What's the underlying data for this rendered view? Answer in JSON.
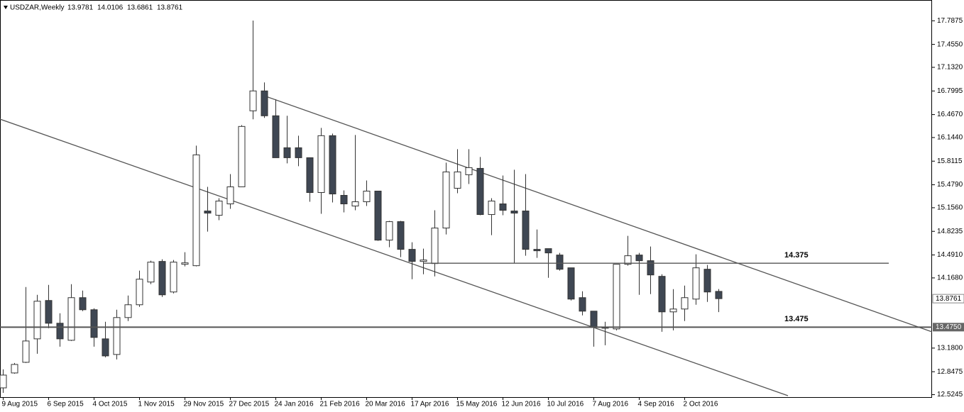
{
  "chart_data": {
    "type": "candlestick",
    "title": "USDZAR,Weekly",
    "categories": [
      "9 Aug 2015",
      null,
      null,
      null,
      "6 Sep 2015",
      null,
      null,
      null,
      "4 Oct 2015",
      null,
      null,
      null,
      "1 Nov 2015",
      null,
      null,
      null,
      "29 Nov 2015",
      null,
      null,
      null,
      "27 Dec 2015",
      null,
      null,
      null,
      "24 Jan 2016",
      null,
      null,
      null,
      "21 Feb 2016",
      null,
      null,
      null,
      "20 Mar 2016",
      null,
      null,
      null,
      "17 Apr 2016",
      null,
      null,
      null,
      "15 May 2016",
      null,
      null,
      null,
      "12 Jun 2016",
      null,
      null,
      null,
      "10 Jul 2016",
      null,
      null,
      null,
      "7 Aug 2016",
      null,
      null,
      null,
      "4 Sep 2016",
      null,
      null,
      null,
      "2 Oct 2016",
      null,
      null,
      null
    ],
    "open": [
      12.62,
      12.83,
      12.98,
      13.31,
      13.85,
      13.53,
      13.29,
      13.89,
      13.72,
      13.31,
      13.09,
      13.61,
      13.79,
      14.11,
      14.4,
      13.97,
      14.36,
      14.34,
      15.11,
      15.05,
      15.21,
      15.45,
      16.52,
      16.8,
      16.45,
      16.0,
      16.0,
      15.86,
      15.37,
      16.17,
      15.33,
      15.18,
      15.24,
      15.39,
      14.7,
      14.96,
      14.57,
      14.4,
      14.37,
      14.87,
      15.43,
      15.62,
      15.71,
      15.06,
      15.21,
      15.11,
      15.11,
      14.57,
      14.58,
      14.49,
      14.31,
      13.89,
      13.7,
      13.47,
      13.45,
      14.36,
      14.49,
      14.41,
      14.19,
      13.69,
      13.73,
      13.87,
      14.29,
      13.9781
    ],
    "high": [
      12.88,
      12.97,
      14.04,
      13.93,
      14.07,
      13.67,
      14.08,
      13.99,
      13.74,
      13.55,
      13.72,
      13.92,
      14.27,
      14.41,
      14.43,
      14.42,
      14.53,
      16.03,
      15.45,
      15.29,
      15.63,
      16.32,
      17.79,
      16.92,
      16.68,
      16.45,
      16.17,
      15.86,
      16.28,
      16.2,
      15.4,
      16.18,
      15.54,
      15.39,
      14.97,
      14.97,
      14.67,
      14.58,
      15.12,
      15.79,
      15.98,
      15.98,
      15.87,
      15.29,
      15.61,
      15.69,
      15.63,
      14.85,
      14.58,
      14.52,
      14.31,
      13.98,
      13.7,
      13.55,
      14.36,
      14.76,
      14.52,
      14.61,
      14.22,
      14.01,
      14.06,
      14.5,
      14.35,
      14.0106
    ],
    "low": [
      12.55,
      12.82,
      12.97,
      13.1,
      13.46,
      13.2,
      13.28,
      13.7,
      13.2,
      13.05,
      13.02,
      13.56,
      13.76,
      14.08,
      13.9,
      13.95,
      14.33,
      14.33,
      14.82,
      14.98,
      15.14,
      15.45,
      16.4,
      16.42,
      15.86,
      15.78,
      15.74,
      15.24,
      15.07,
      15.23,
      15.09,
      15.12,
      15.18,
      14.69,
      14.6,
      14.46,
      14.15,
      14.22,
      14.19,
      14.78,
      15.36,
      15.49,
      15.05,
      14.77,
      15.05,
      14.38,
      14.48,
      14.45,
      14.17,
      14.27,
      13.85,
      13.64,
      13.2,
      13.22,
      13.43,
      14.34,
      13.93,
      13.94,
      13.41,
      13.43,
      13.56,
      13.79,
      13.83,
      13.6861
    ],
    "close": [
      12.8,
      12.95,
      13.28,
      13.84,
      13.53,
      13.31,
      13.89,
      13.72,
      13.33,
      13.07,
      13.61,
      13.79,
      14.15,
      14.39,
      13.93,
      14.39,
      14.38,
      15.9,
      15.08,
      15.25,
      15.45,
      16.3,
      16.8,
      16.45,
      15.86,
      15.86,
      15.86,
      15.37,
      16.17,
      15.35,
      15.21,
      15.24,
      15.39,
      14.7,
      14.96,
      14.57,
      14.4,
      14.42,
      14.87,
      15.66,
      15.66,
      15.72,
      15.06,
      15.25,
      15.12,
      15.08,
      14.57,
      14.55,
      14.52,
      14.29,
      13.87,
      13.7,
      13.47,
      13.46,
      14.36,
      14.48,
      14.41,
      14.21,
      13.69,
      13.73,
      13.89,
      14.31,
      13.97,
      13.8761
    ],
    "up_color": "#ffffff",
    "down_color": "#3f4753",
    "ylim": [
      12.49,
      18.08
    ],
    "yticks": [
      17.7875,
      {
        "value": 17.455,
        "label": "17.4550"
      },
      {
        "value": 17.132,
        "label": "17.1320"
      },
      16.7995,
      {
        "value": 16.467,
        "label": "16.4670"
      },
      {
        "value": 16.144,
        "label": "16.1440"
      },
      15.8115,
      {
        "value": 15.479,
        "label": "15.4790"
      },
      {
        "value": 15.156,
        "label": "15.1560"
      },
      14.8235,
      {
        "value": 14.491,
        "label": "14.4910"
      },
      {
        "value": 14.168,
        "label": "14.1680"
      },
      {
        "value": 13.18,
        "label": "13.1800"
      },
      12.8475,
      12.5245
    ],
    "hlines": [
      14.375,
      13.475
    ],
    "hline_axis_label": {
      "value": 13.475,
      "label": "13.4750"
    }
  }
}
